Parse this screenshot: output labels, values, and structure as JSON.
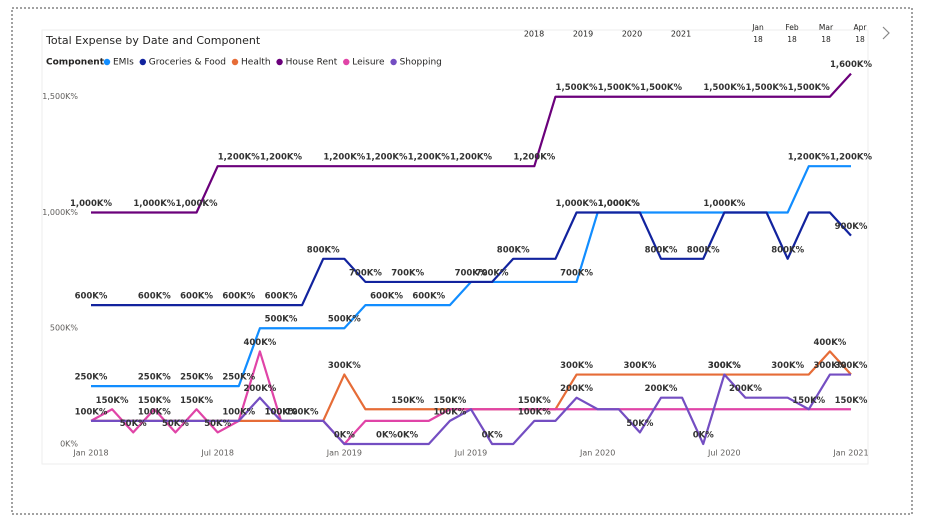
{
  "chart_data": {
    "type": "line",
    "title": "Total Expense by Date and Component",
    "legend_title": "Component",
    "categories": [
      "Jan 2018",
      null,
      null,
      null,
      null,
      null,
      "Jul 2018",
      null,
      null,
      null,
      null,
      null,
      "Jan 2019",
      null,
      null,
      null,
      null,
      null,
      "Jul 2019",
      null,
      null,
      null,
      null,
      null,
      "Jan 2020",
      null,
      null,
      null,
      null,
      null,
      "Jul 2020",
      null,
      null,
      null,
      null,
      null,
      "Jan 2021"
    ],
    "ylim": [
      0,
      1650
    ],
    "yticks": [
      {
        "value": 0,
        "label": "0K%"
      },
      {
        "value": 500,
        "label": "500K%"
      },
      {
        "value": 1000,
        "label": "1,000K%"
      },
      {
        "value": 1500,
        "label": "1,500K%"
      }
    ],
    "series": [
      {
        "name": "EMIs",
        "color": "#118dff",
        "values": [
          250,
          250,
          250,
          250,
          250,
          250,
          250,
          250,
          500,
          500,
          500,
          500,
          500,
          600,
          600,
          600,
          600,
          600,
          700,
          700,
          700,
          700,
          700,
          700,
          1000,
          1000,
          1000,
          1000,
          1000,
          1000,
          1000,
          1000,
          1000,
          1000,
          1200,
          1200,
          1200
        ],
        "value_labels": [
          "250K%",
          null,
          null,
          "250K%",
          null,
          "250K%",
          null,
          "250K%",
          null,
          "500K%",
          null,
          null,
          "500K%",
          null,
          "600K%",
          null,
          "600K%",
          null,
          null,
          "700K%",
          null,
          null,
          null,
          "700K%",
          null,
          "1,000K%",
          null,
          null,
          null,
          null,
          null,
          null,
          null,
          null,
          "1,200K%",
          null,
          "1,200K%"
        ]
      },
      {
        "name": "Groceries & Food",
        "color": "#12239e",
        "values": [
          600,
          600,
          600,
          600,
          600,
          600,
          600,
          600,
          600,
          600,
          600,
          800,
          800,
          700,
          700,
          700,
          700,
          700,
          700,
          700,
          800,
          800,
          800,
          1000,
          1000,
          1000,
          1000,
          800,
          800,
          800,
          1000,
          1000,
          1000,
          800,
          1000,
          1000,
          900
        ],
        "value_labels": [
          "600K%",
          null,
          null,
          "600K%",
          null,
          "600K%",
          null,
          "600K%",
          null,
          "600K%",
          null,
          "800K%",
          null,
          "700K%",
          null,
          "700K%",
          null,
          null,
          "700K%",
          null,
          "800K%",
          null,
          null,
          "1,000K%",
          null,
          "1,000K%",
          null,
          "800K%",
          null,
          "800K%",
          "1,000K%",
          null,
          null,
          "800K%",
          null,
          null,
          "900K%"
        ]
      },
      {
        "name": "Health",
        "color": "#e66c37",
        "values": [
          100,
          100,
          100,
          100,
          100,
          100,
          100,
          100,
          100,
          100,
          100,
          100,
          300,
          150,
          150,
          150,
          150,
          150,
          150,
          150,
          150,
          150,
          150,
          300,
          300,
          300,
          300,
          300,
          300,
          300,
          300,
          300,
          300,
          300,
          300,
          400,
          300
        ],
        "value_labels": [
          null,
          null,
          null,
          null,
          null,
          null,
          null,
          null,
          null,
          null,
          null,
          null,
          "300K%",
          null,
          null,
          "150K%",
          null,
          null,
          null,
          null,
          null,
          null,
          null,
          "300K%",
          null,
          null,
          "300K%",
          null,
          null,
          null,
          "300K%",
          null,
          null,
          "300K%",
          null,
          "400K%",
          "300K%"
        ]
      },
      {
        "name": "House Rent",
        "color": "#6b007b",
        "values": [
          1000,
          1000,
          1000,
          1000,
          1000,
          1000,
          1200,
          1200,
          1200,
          1200,
          1200,
          1200,
          1200,
          1200,
          1200,
          1200,
          1200,
          1200,
          1200,
          1200,
          1200,
          1200,
          1500,
          1500,
          1500,
          1500,
          1500,
          1500,
          1500,
          1500,
          1500,
          1500,
          1500,
          1500,
          1500,
          1500,
          1600
        ],
        "value_labels": [
          "1,000K%",
          null,
          null,
          "1,000K%",
          null,
          "1,000K%",
          null,
          "1,200K%",
          null,
          "1,200K%",
          null,
          null,
          "1,200K%",
          null,
          "1,200K%",
          null,
          "1,200K%",
          null,
          "1,200K%",
          null,
          null,
          "1,200K%",
          null,
          "1,500K%",
          null,
          "1,500K%",
          null,
          "1,500K%",
          null,
          null,
          "1,500K%",
          null,
          "1,500K%",
          null,
          "1,500K%",
          null,
          "1,600K%"
        ]
      },
      {
        "name": "Leisure",
        "color": "#e044a7",
        "values": [
          100,
          150,
          50,
          150,
          50,
          150,
          50,
          100,
          400,
          100,
          100,
          100,
          0,
          100,
          100,
          100,
          100,
          150,
          150,
          150,
          150,
          150,
          150,
          150,
          150,
          150,
          150,
          150,
          150,
          150,
          150,
          150,
          150,
          150,
          150,
          150,
          150
        ],
        "value_labels": [
          null,
          "150K%",
          "50K%",
          "150K%",
          "50K%",
          "150K%",
          "50K%",
          null,
          "400K%",
          "100K%",
          null,
          null,
          null,
          null,
          null,
          null,
          null,
          "150K%",
          null,
          null,
          null,
          "150K%",
          null,
          null,
          null,
          null,
          null,
          null,
          null,
          null,
          null,
          null,
          null,
          null,
          null,
          null,
          "150K%"
        ]
      },
      {
        "name": "Shopping",
        "color": "#744ec2",
        "values": [
          100,
          100,
          100,
          100,
          100,
          100,
          100,
          100,
          200,
          100,
          100,
          100,
          0,
          0,
          0,
          0,
          0,
          100,
          150,
          0,
          0,
          100,
          100,
          200,
          150,
          150,
          50,
          200,
          200,
          0,
          300,
          200,
          200,
          200,
          150,
          300,
          300
        ],
        "value_labels": [
          "100K%",
          null,
          null,
          "100K%",
          null,
          null,
          null,
          "100K%",
          "200K%",
          "100K%",
          "100K%",
          null,
          "0K%",
          null,
          "0K%",
          "0K%",
          null,
          "100K%",
          null,
          "0K%",
          null,
          "100K%",
          null,
          "200K%",
          null,
          null,
          "50K%",
          "200K%",
          null,
          "0K%",
          "300K%",
          "200K%",
          null,
          null,
          "150K%",
          "300K%",
          null
        ]
      }
    ]
  },
  "slicer": {
    "years": [
      "2018",
      "2019",
      "2020",
      "2021"
    ],
    "months": [
      {
        "month": "Jan",
        "year": "18"
      },
      {
        "month": "Feb",
        "year": "18"
      },
      {
        "month": "Mar",
        "year": "18"
      },
      {
        "month": "Apr",
        "year": "18"
      }
    ]
  }
}
